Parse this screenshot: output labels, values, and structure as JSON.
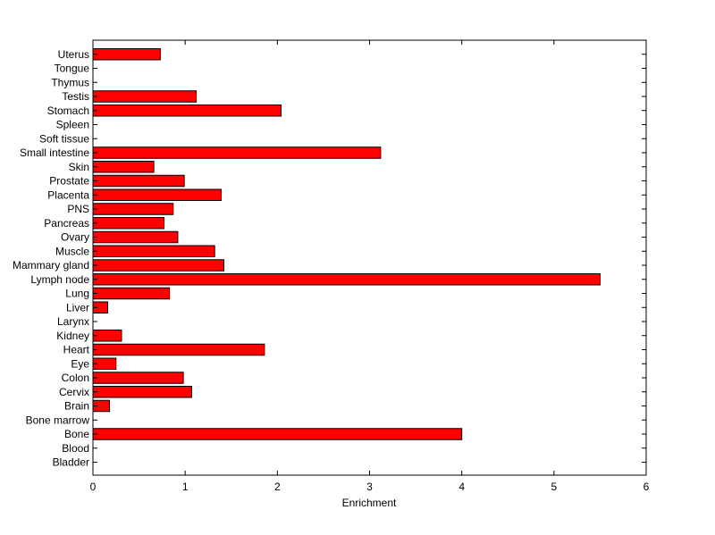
{
  "chart_data": {
    "type": "bar",
    "orientation": "horizontal",
    "title": "",
    "xlabel": "Enrichment",
    "ylabel": "",
    "xlim": [
      0,
      6
    ],
    "xticks": [
      0,
      1,
      2,
      3,
      4,
      5,
      6
    ],
    "grid": false,
    "bar_color": "#ff0000",
    "bar_edge_color": "#000000",
    "categories": [
      "Bladder",
      "Blood",
      "Bone",
      "Bone marrow",
      "Brain",
      "Cervix",
      "Colon",
      "Eye",
      "Heart",
      "Kidney",
      "Larynx",
      "Liver",
      "Lung",
      "Lymph node",
      "Mammary gland",
      "Muscle",
      "Ovary",
      "Pancreas",
      "PNS",
      "Placenta",
      "Prostate",
      "Skin",
      "Small intestine",
      "Soft tissue",
      "Spleen",
      "Stomach",
      "Testis",
      "Thymus",
      "Tongue",
      "Uterus"
    ],
    "values": [
      0,
      0,
      4.0,
      0,
      0.18,
      1.07,
      0.98,
      0.25,
      1.86,
      0.31,
      0,
      0.16,
      0.83,
      5.5,
      1.42,
      1.32,
      0.92,
      0.77,
      0.87,
      1.39,
      0.99,
      0.66,
      3.12,
      0,
      0,
      2.04,
      1.12,
      0,
      0,
      0.73
    ]
  }
}
